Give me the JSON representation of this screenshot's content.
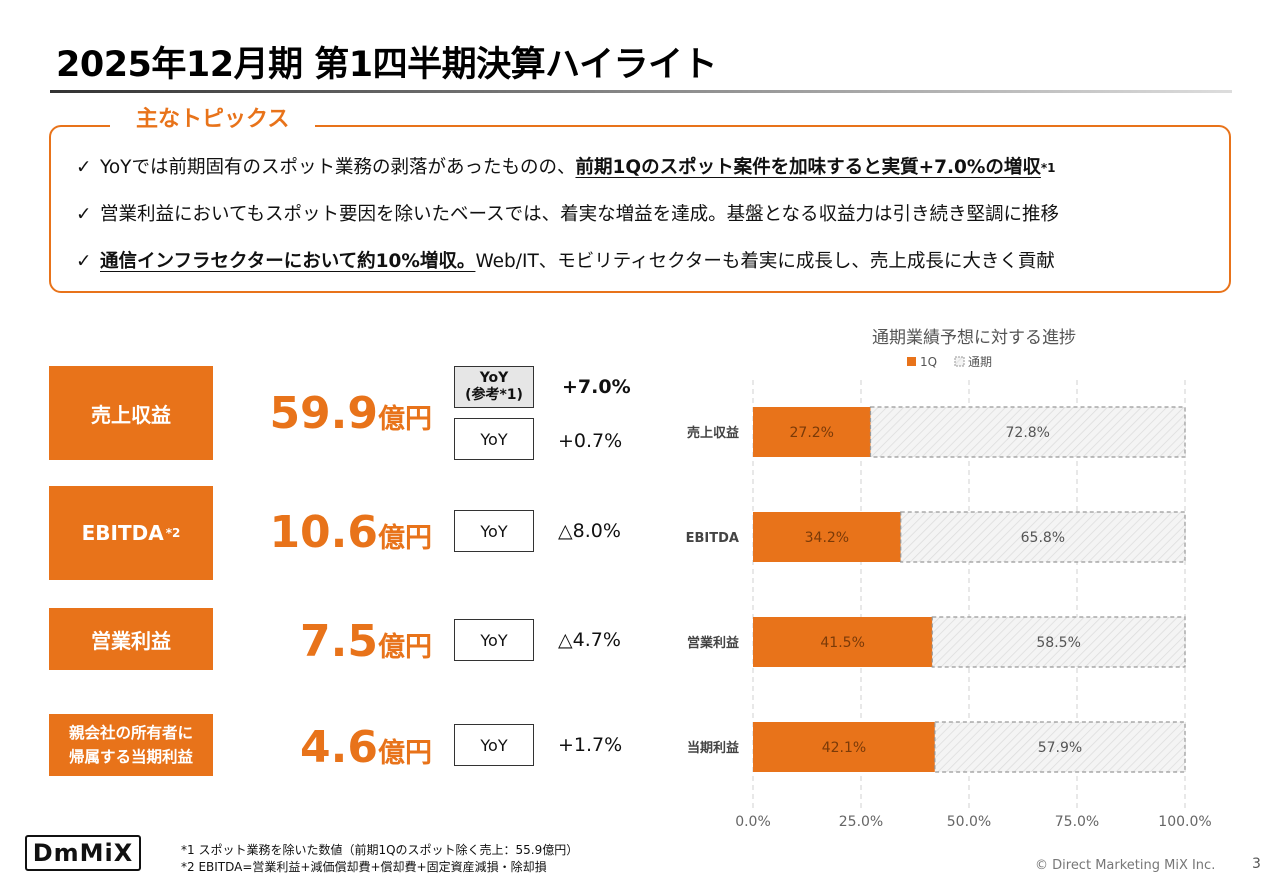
{
  "title": "2025年12月期 第1四半期決算ハイライト",
  "topics": {
    "heading": "主なトピックス",
    "items": [
      {
        "check": "✓",
        "before": "YoYでは前期固有のスポット業務の剥落があったものの、",
        "emphasis": "前期1Qのスポット案件を加味すると実質+7.0%の増収",
        "sup": "*1",
        "after": ""
      },
      {
        "check": "✓",
        "before": "営業利益においてもスポット要因を除いたベースでは、着実な増益を達成。基盤となる収益力は引き続き堅調に推移",
        "emphasis": "",
        "sup": "",
        "after": ""
      },
      {
        "check": "✓",
        "before": "",
        "emphasis": "通信インフラセクターにおいて約10%増収。",
        "sup": "",
        "after": "Web/IT、モビリティセクターも着実に成長し、売上成長に大きく貢献"
      }
    ]
  },
  "metrics": [
    {
      "label": "売上収益",
      "label_sup": "",
      "label_line2": "",
      "value": "59.9",
      "unit": "億円",
      "yoy_ref_label_1": "YoY",
      "yoy_ref_label_2": "(参考*1)",
      "yoy_ref_value": "+7.0%",
      "yoy_label": "YoY",
      "yoy_value": "+0.7%"
    },
    {
      "label": "EBITDA",
      "label_sup": "*2",
      "label_line2": "",
      "value": "10.6",
      "unit": "億円",
      "yoy_label": "YoY",
      "yoy_value": "△8.0%"
    },
    {
      "label": "営業利益",
      "label_sup": "",
      "label_line2": "",
      "value": "7.5",
      "unit": "億円",
      "yoy_label": "YoY",
      "yoy_value": "△4.7%"
    },
    {
      "label": "親会社の所有者に",
      "label_sup": "",
      "label_line2": "帰属する当期利益",
      "value": "4.6",
      "unit": "億円",
      "yoy_label": "YoY",
      "yoy_value": "+1.7%"
    }
  ],
  "chart_data": {
    "type": "bar",
    "orientation": "horizontal",
    "stacked": true,
    "title": "通期業績予想に対する進捗",
    "categories": [
      "売上収益",
      "EBITDA",
      "営業利益",
      "当期利益"
    ],
    "series": [
      {
        "name": "1Q",
        "values": [
          27.2,
          34.2,
          41.5,
          42.1
        ],
        "labels": [
          "27.2%",
          "34.2%",
          "41.5%",
          "42.1%"
        ],
        "color": "#E8731A"
      },
      {
        "name": "通期",
        "values": [
          72.8,
          65.8,
          58.5,
          57.9
        ],
        "labels": [
          "72.8%",
          "65.8%",
          "58.5%",
          "57.9%"
        ],
        "color": "#f4f4f4"
      }
    ],
    "xlim": [
      0,
      100
    ],
    "xticks": [
      "0.0%",
      "25.0%",
      "50.0%",
      "75.0%",
      "100.0%"
    ],
    "grid": true,
    "legend_position": "top"
  },
  "footnotes": [
    "*1  スポット業務を除いた数値（前期1Qのスポット除く売上：55.9億円）",
    "*2  EBITDA=営業利益+減価償却費+償却費+固定資産減損・除却損"
  ],
  "logo_text": "DmMiX",
  "copyright": "© Direct Marketing MiX Inc.",
  "page_number": "3",
  "colors": {
    "accent": "#E8731A",
    "remaining_fill": "#f4f4f4",
    "remaining_border": "#999999"
  }
}
